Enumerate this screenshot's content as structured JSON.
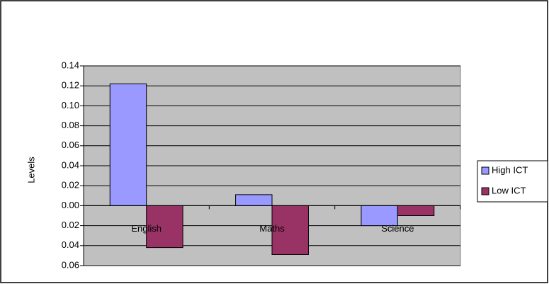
{
  "chart_data": {
    "type": "bar",
    "categories": [
      "English",
      "Maths",
      "Science"
    ],
    "series": [
      {
        "name": "High ICT",
        "color": "#9999ff",
        "values": [
          0.122,
          0.011,
          -0.02
        ]
      },
      {
        "name": "Low ICT",
        "color": "#993366",
        "values": [
          -0.042,
          -0.049,
          -0.01
        ]
      }
    ],
    "y_label": "Levels",
    "ylim": [
      -0.06,
      0.14
    ],
    "yticks": [
      0.14,
      0.12,
      {
        "value": 0.1,
        "label": "0.10"
      },
      0.08,
      0.06,
      0.04,
      0.02,
      {
        "value": 0,
        "label": "0.00"
      },
      {
        "value": -0.02,
        "label": "0.02"
      },
      {
        "value": -0.04,
        "label": "0.04"
      },
      {
        "value": -0.06,
        "label": "0.06"
      }
    ],
    "negative_tick_color": "#ff0000",
    "plot_background": "#c0c0c0",
    "grid": true,
    "legend": "right"
  }
}
